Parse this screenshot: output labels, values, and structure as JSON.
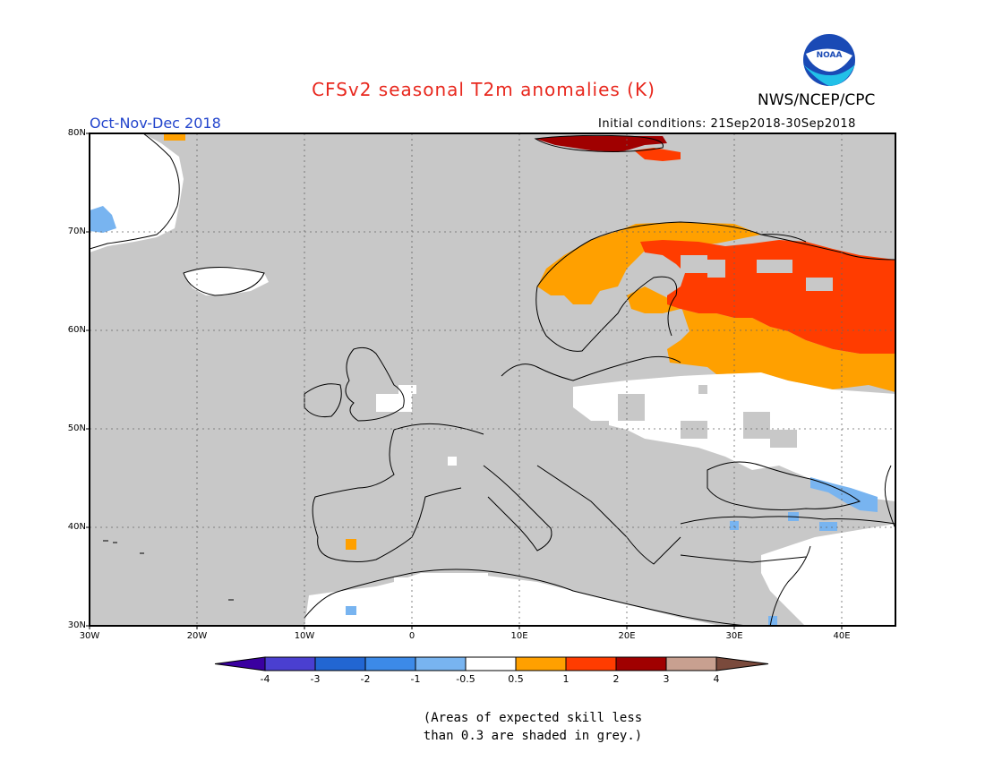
{
  "title": "CFSv2 seasonal T2m anomalies (K)",
  "organization": "NWS/NCEP/CPC",
  "logo_text": "NOAA",
  "season_label": "Oct-Nov-Dec 2018",
  "initial_conditions": "Initial conditions: 21Sep2018-30Sep2018",
  "note_line1": "(Areas of expected skill less",
  "note_line2": "than 0.3 are shaded in grey.)",
  "colors": {
    "title": "#e8281e",
    "season": "#2244cc",
    "grey": "#c8c8c8",
    "logo_blue": "#1a4ab5",
    "logo_cyan": "#22c0e8"
  },
  "map": {
    "lat_labels": [
      "80N",
      "70N",
      "60N",
      "50N",
      "40N",
      "30N"
    ],
    "lon_labels": [
      "30W",
      "20W",
      "10W",
      "0",
      "10E",
      "20E",
      "30E",
      "40E"
    ]
  },
  "colorbar": {
    "bins": [
      {
        "color": "#3a00a0"
      },
      {
        "color": "#4a3fd0"
      },
      {
        "color": "#2266d2"
      },
      {
        "color": "#3c8ae8"
      },
      {
        "color": "#78b4f0"
      },
      {
        "color": "#ffffff"
      },
      {
        "color": "#ffa000"
      },
      {
        "color": "#ff3c00"
      },
      {
        "color": "#a00000"
      },
      {
        "color": "#c8a090"
      },
      {
        "color": "#7a4a3c"
      }
    ],
    "labels": [
      "-4",
      "-3",
      "-2",
      "-1",
      "-0.5",
      "0.5",
      "1",
      "2",
      "3",
      "4"
    ]
  }
}
